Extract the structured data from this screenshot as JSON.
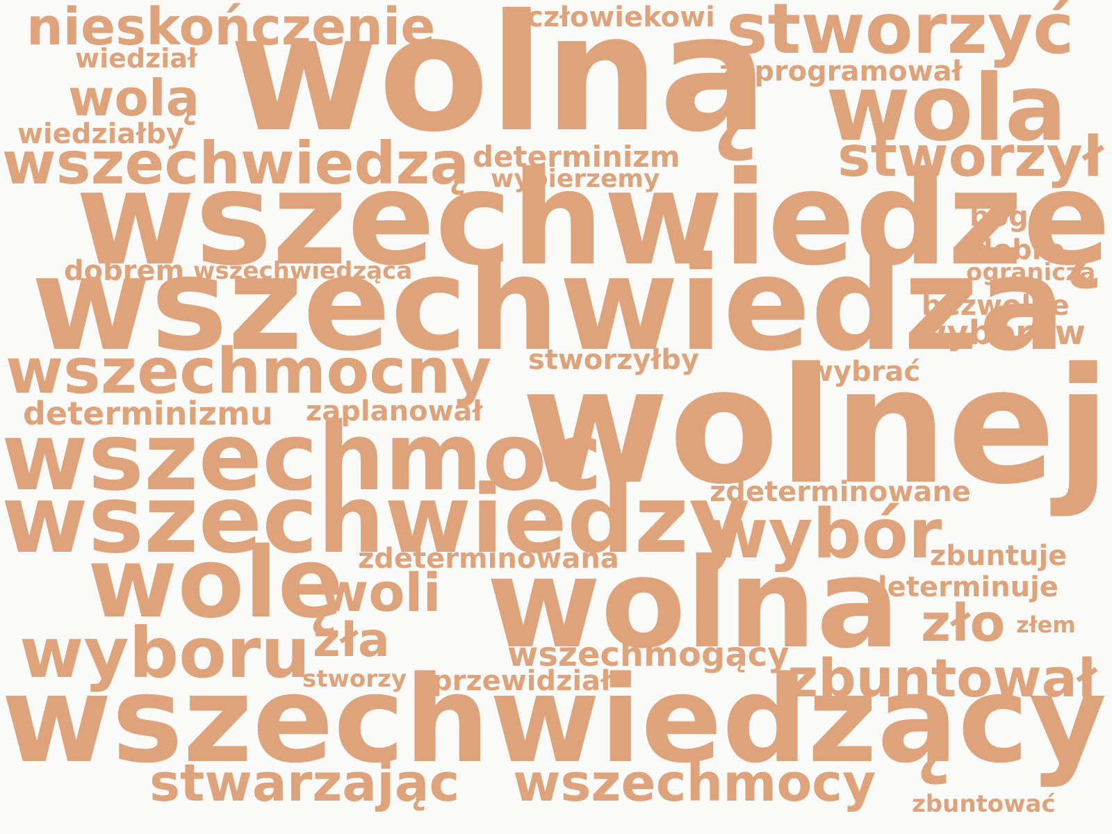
{
  "cloud": {
    "text_color": "#dea37b",
    "background": "#fafaf8",
    "words": [
      "wolną",
      "wszechwiedzę",
      "wszechwiedza",
      "wolnej",
      "wszechwiedzący",
      "wszechmoc",
      "wszechwiedzy",
      "wolna",
      "stworzyć",
      "wola",
      "nieskończenie",
      "wszechwiedzą",
      "wszechmocny",
      "wolę",
      "wyboru",
      "wybór",
      "stworzył",
      "wolą",
      "stwarzając",
      "wszechmocy",
      "zbuntował",
      "woli",
      "zło",
      "zła",
      "wszechmogący",
      "zdeterminowana",
      "zdeterminowane",
      "determinizm",
      "determinizmu",
      "zaprogramował",
      "człowiekowi",
      "wyborów",
      "determinuje",
      "zbuntuje",
      "stworzyłby",
      "zaplanował",
      "przewidział",
      "dobrem",
      "bezwolne",
      "wiedziałby",
      "wszechwiedząca",
      "wybierzemy",
      "dobro",
      "bóg",
      "wybrać",
      "wiedział",
      "ogranicza",
      "stworzy",
      "zbuntować",
      "złem"
    ]
  }
}
